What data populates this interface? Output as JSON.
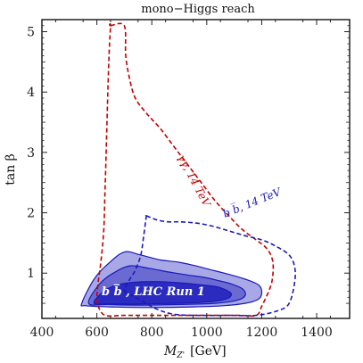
{
  "chart_data": {
    "type": "area",
    "title": "mono−Higgs reach",
    "xlabel": "M",
    "xlabel_sub": "Z'",
    "xlabel_unit": "[GeV]",
    "ylabel": "tan  β",
    "xlim": [
      400,
      1520
    ],
    "ylim": [
      0.25,
      5.2
    ],
    "xticks": [
      400,
      600,
      800,
      1000,
      1200,
      1400
    ],
    "yticks": [
      1,
      2,
      3,
      4,
      5
    ],
    "colors": {
      "gamma_gamma": "#c00000",
      "bb_14": "#1a1ab8",
      "run1_outer": "#a8a8e6",
      "run1_mid": "#6a6ad2",
      "run1_inner": "#2b2bbf",
      "run1_edge": "#1a1ab8"
    },
    "regions": [
      {
        "name": "bb, LHC Run 1 outer band",
        "color_key": "run1_outer",
        "points": [
          [
            545,
            0.5
          ],
          [
            590,
            0.9
          ],
          [
            640,
            1.15
          ],
          [
            700,
            1.35
          ],
          [
            760,
            1.3
          ],
          [
            830,
            1.22
          ],
          [
            900,
            1.18
          ],
          [
            960,
            1.12
          ],
          [
            1020,
            1.05
          ],
          [
            1080,
            0.98
          ],
          [
            1140,
            0.9
          ],
          [
            1190,
            0.8
          ],
          [
            1200,
            0.66
          ],
          [
            1185,
            0.56
          ],
          [
            1140,
            0.5
          ],
          [
            1060,
            0.46
          ],
          [
            950,
            0.44
          ],
          [
            800,
            0.43
          ],
          [
            650,
            0.44
          ],
          [
            560,
            0.46
          ]
        ]
      },
      {
        "name": "bb, LHC Run 1 middle band",
        "color_key": "run1_mid",
        "points": [
          [
            570,
            0.5
          ],
          [
            610,
            0.82
          ],
          [
            660,
            1.0
          ],
          [
            720,
            1.12
          ],
          [
            790,
            1.08
          ],
          [
            860,
            1.02
          ],
          [
            930,
            0.97
          ],
          [
            990,
            0.93
          ],
          [
            1040,
            0.88
          ],
          [
            1090,
            0.82
          ],
          [
            1130,
            0.74
          ],
          [
            1140,
            0.63
          ],
          [
            1110,
            0.55
          ],
          [
            1030,
            0.5
          ],
          [
            900,
            0.48
          ],
          [
            760,
            0.47
          ],
          [
            640,
            0.48
          ]
        ]
      },
      {
        "name": "bb, LHC Run 1 inner band",
        "color_key": "run1_inner",
        "points": [
          [
            590,
            0.5
          ],
          [
            620,
            0.68
          ],
          [
            670,
            0.8
          ],
          [
            740,
            0.85
          ],
          [
            820,
            0.86
          ],
          [
            900,
            0.84
          ],
          [
            970,
            0.81
          ],
          [
            1030,
            0.78
          ],
          [
            1070,
            0.72
          ],
          [
            1090,
            0.65
          ],
          [
            1070,
            0.57
          ],
          [
            1000,
            0.52
          ],
          [
            880,
            0.5
          ],
          [
            750,
            0.49
          ],
          [
            650,
            0.49
          ]
        ]
      }
    ],
    "contours": [
      {
        "name": "γγ, 14 TeV",
        "color_key": "gamma_gamma",
        "points": [
          [
            650,
            5.1
          ],
          [
            700,
            5.1
          ],
          [
            705,
            4.6
          ],
          [
            720,
            4.2
          ],
          [
            740,
            3.9
          ],
          [
            780,
            3.65
          ],
          [
            830,
            3.4
          ],
          [
            880,
            3.1
          ],
          [
            930,
            2.8
          ],
          [
            980,
            2.5
          ],
          [
            1030,
            2.2
          ],
          [
            1080,
            1.95
          ],
          [
            1130,
            1.72
          ],
          [
            1180,
            1.55
          ],
          [
            1220,
            1.4
          ],
          [
            1240,
            1.2
          ],
          [
            1240,
            0.95
          ],
          [
            1230,
            0.75
          ],
          [
            1200,
            0.45
          ],
          [
            1180,
            0.3
          ],
          [
            1120,
            0.3
          ],
          [
            1010,
            0.3
          ],
          [
            900,
            0.3
          ],
          [
            800,
            0.3
          ],
          [
            700,
            0.3
          ],
          [
            630,
            0.3
          ],
          [
            605,
            0.45
          ],
          [
            600,
            0.6
          ],
          [
            605,
            0.85
          ],
          [
            615,
            1.2
          ],
          [
            625,
            1.7
          ],
          [
            630,
            2.4
          ],
          [
            635,
            3.2
          ],
          [
            640,
            4.0
          ],
          [
            645,
            4.7
          ],
          [
            650,
            5.1
          ]
        ]
      },
      {
        "name": "b b̅, 14 TeV",
        "color_key": "bb_14",
        "points": [
          [
            780,
            1.95
          ],
          [
            820,
            1.88
          ],
          [
            860,
            1.85
          ],
          [
            900,
            1.85
          ],
          [
            960,
            1.83
          ],
          [
            1020,
            1.78
          ],
          [
            1080,
            1.7
          ],
          [
            1140,
            1.62
          ],
          [
            1200,
            1.55
          ],
          [
            1250,
            1.45
          ],
          [
            1300,
            1.3
          ],
          [
            1320,
            1.1
          ],
          [
            1320,
            0.85
          ],
          [
            1300,
            0.5
          ],
          [
            1260,
            0.38
          ],
          [
            1180,
            0.3
          ],
          [
            1080,
            0.3
          ],
          [
            960,
            0.3
          ],
          [
            880,
            0.32
          ],
          [
            820,
            0.4
          ],
          [
            760,
            0.55
          ],
          [
            720,
            0.65
          ],
          [
            700,
            0.72
          ],
          [
            720,
            0.9
          ],
          [
            740,
            1.05
          ],
          [
            760,
            1.3
          ],
          [
            770,
            1.6
          ],
          [
            780,
            1.95
          ]
        ]
      }
    ],
    "annotations": [
      {
        "text": "γγ, 14 TeV",
        "color_key": "gamma_gamma"
      },
      {
        "text": "b b̅, 14 TeV",
        "color_key": "bb_14"
      },
      {
        "text": "b b̅ , LHC Run 1",
        "color_key": "run1_inner"
      }
    ]
  }
}
